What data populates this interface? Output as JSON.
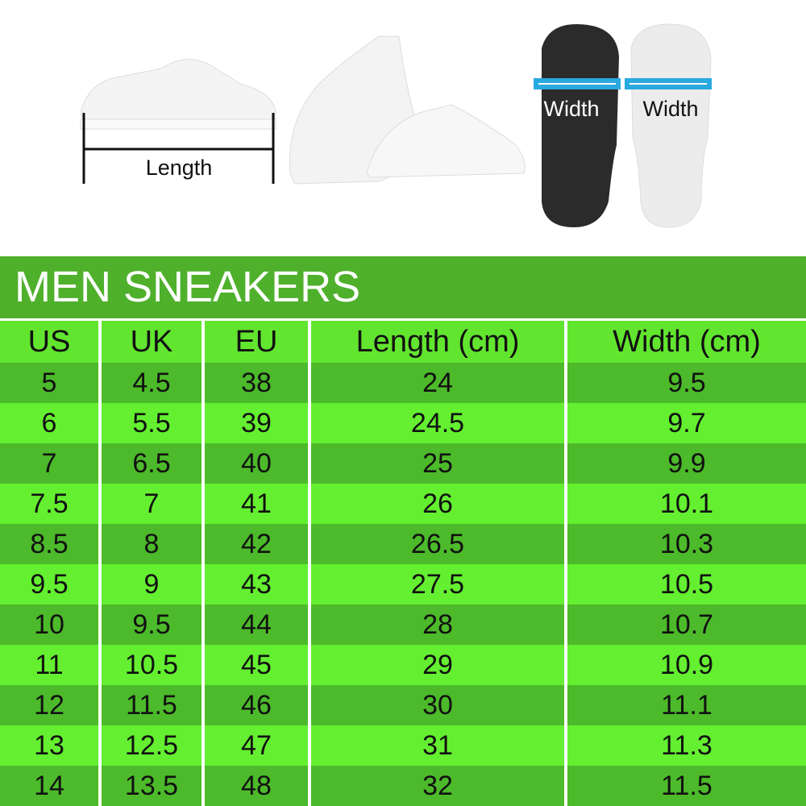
{
  "images": {
    "length_label": "Length",
    "width_label_dark": "Width",
    "width_label_light": "Width",
    "measure_color": "#29a9e0"
  },
  "title": "MEN SNEAKERS",
  "columns": [
    "US",
    "UK",
    "EU",
    "Length (cm)",
    "Width (cm)"
  ],
  "rows": [
    [
      "5",
      "4.5",
      "38",
      "24",
      "9.5"
    ],
    [
      "6",
      "5.5",
      "39",
      "24.5",
      "9.7"
    ],
    [
      "7",
      "6.5",
      "40",
      "25",
      "9.9"
    ],
    [
      "7.5",
      "7",
      "41",
      "26",
      "10.1"
    ],
    [
      "8.5",
      "8",
      "42",
      "26.5",
      "10.3"
    ],
    [
      "9.5",
      "9",
      "43",
      "27.5",
      "10.5"
    ],
    [
      "10",
      "9.5",
      "44",
      "28",
      "10.7"
    ],
    [
      "11",
      "10.5",
      "45",
      "29",
      "10.9"
    ],
    [
      "12",
      "11.5",
      "46",
      "30",
      "11.1"
    ],
    [
      "13",
      "12.5",
      "47",
      "31",
      "11.3"
    ],
    [
      "14",
      "13.5",
      "48",
      "32",
      "11.5"
    ]
  ],
  "colors": {
    "title_bar": "#4fb02c",
    "header": "#62e52f",
    "row_dark": "#4cba2a",
    "row_light": "#64ef30"
  }
}
